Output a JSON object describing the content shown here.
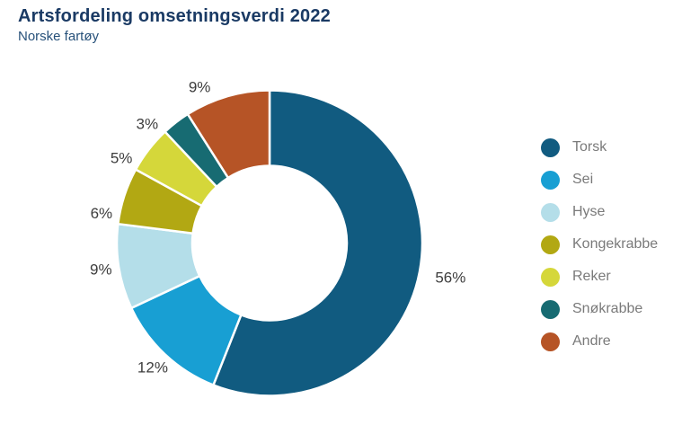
{
  "header": {
    "title": "Artsfordeling omsetningsverdi 2022",
    "subtitle": "Norske fartøy"
  },
  "chart_data": {
    "type": "pie",
    "subtype": "donut",
    "title": "Artsfordeling omsetningsverdi 2022",
    "subtitle": "Norske fartøy",
    "unit": "%",
    "start_angle_deg": 0,
    "clockwise": true,
    "legend_position": "right",
    "categories": [
      "Torsk",
      "Sei",
      "Hyse",
      "Kongekrabbe",
      "Reker",
      "Snøkrabbe",
      "Andre"
    ],
    "values": [
      56,
      12,
      9,
      6,
      5,
      3,
      9
    ],
    "labels": [
      "56%",
      "12%",
      "9%",
      "6%",
      "5%",
      "3%",
      "9%"
    ],
    "colors": [
      "#115b80",
      "#189fd3",
      "#b4dee9",
      "#b2a813",
      "#d5d73a",
      "#176b72",
      "#b65426"
    ]
  },
  "colors": {
    "background": "#ffffff",
    "title_text": "#1a3a64",
    "subtitle_text": "#27517a",
    "legend_text": "#7a7a7a",
    "slice_label_text": "#3d3d3d",
    "slice_divider": "#ffffff"
  }
}
